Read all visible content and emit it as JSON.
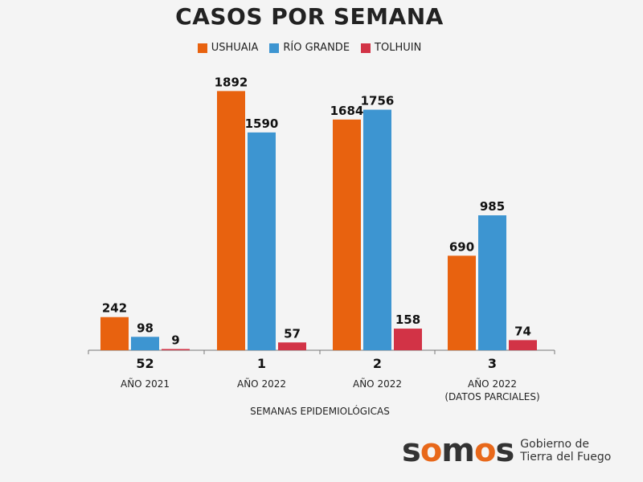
{
  "chart_data": {
    "type": "bar",
    "title": "CASOS POR SEMANA",
    "xlabel": "SEMANAS EPIDEMIOLÓGICAS",
    "categories": [
      {
        "week": "52",
        "year": "AÑO 2021",
        "note": ""
      },
      {
        "week": "1",
        "year": "AÑO 2022",
        "note": ""
      },
      {
        "week": "2",
        "year": "AÑO 2022",
        "note": ""
      },
      {
        "week": "3",
        "year": "AÑO 2022",
        "note": "(DATOS PARCIALES)"
      }
    ],
    "series": [
      {
        "name": "USHUAIA",
        "color": "#e8620f",
        "values": [
          242,
          1892,
          1684,
          690
        ]
      },
      {
        "name": "RÍO GRANDE",
        "color": "#3d95d1",
        "values": [
          98,
          1590,
          1756,
          985
        ]
      },
      {
        "name": "TOLHUIN",
        "color": "#d23346",
        "values": [
          9,
          57,
          158,
          74
        ]
      }
    ],
    "ylim": [
      0,
      1900
    ],
    "grid": false,
    "legend_position": "top-center"
  },
  "logo": {
    "word_1": "s",
    "word_2": "m",
    "word_3": "s",
    "line_1": "Gobierno de",
    "line_2": "Tierra del Fuego"
  }
}
